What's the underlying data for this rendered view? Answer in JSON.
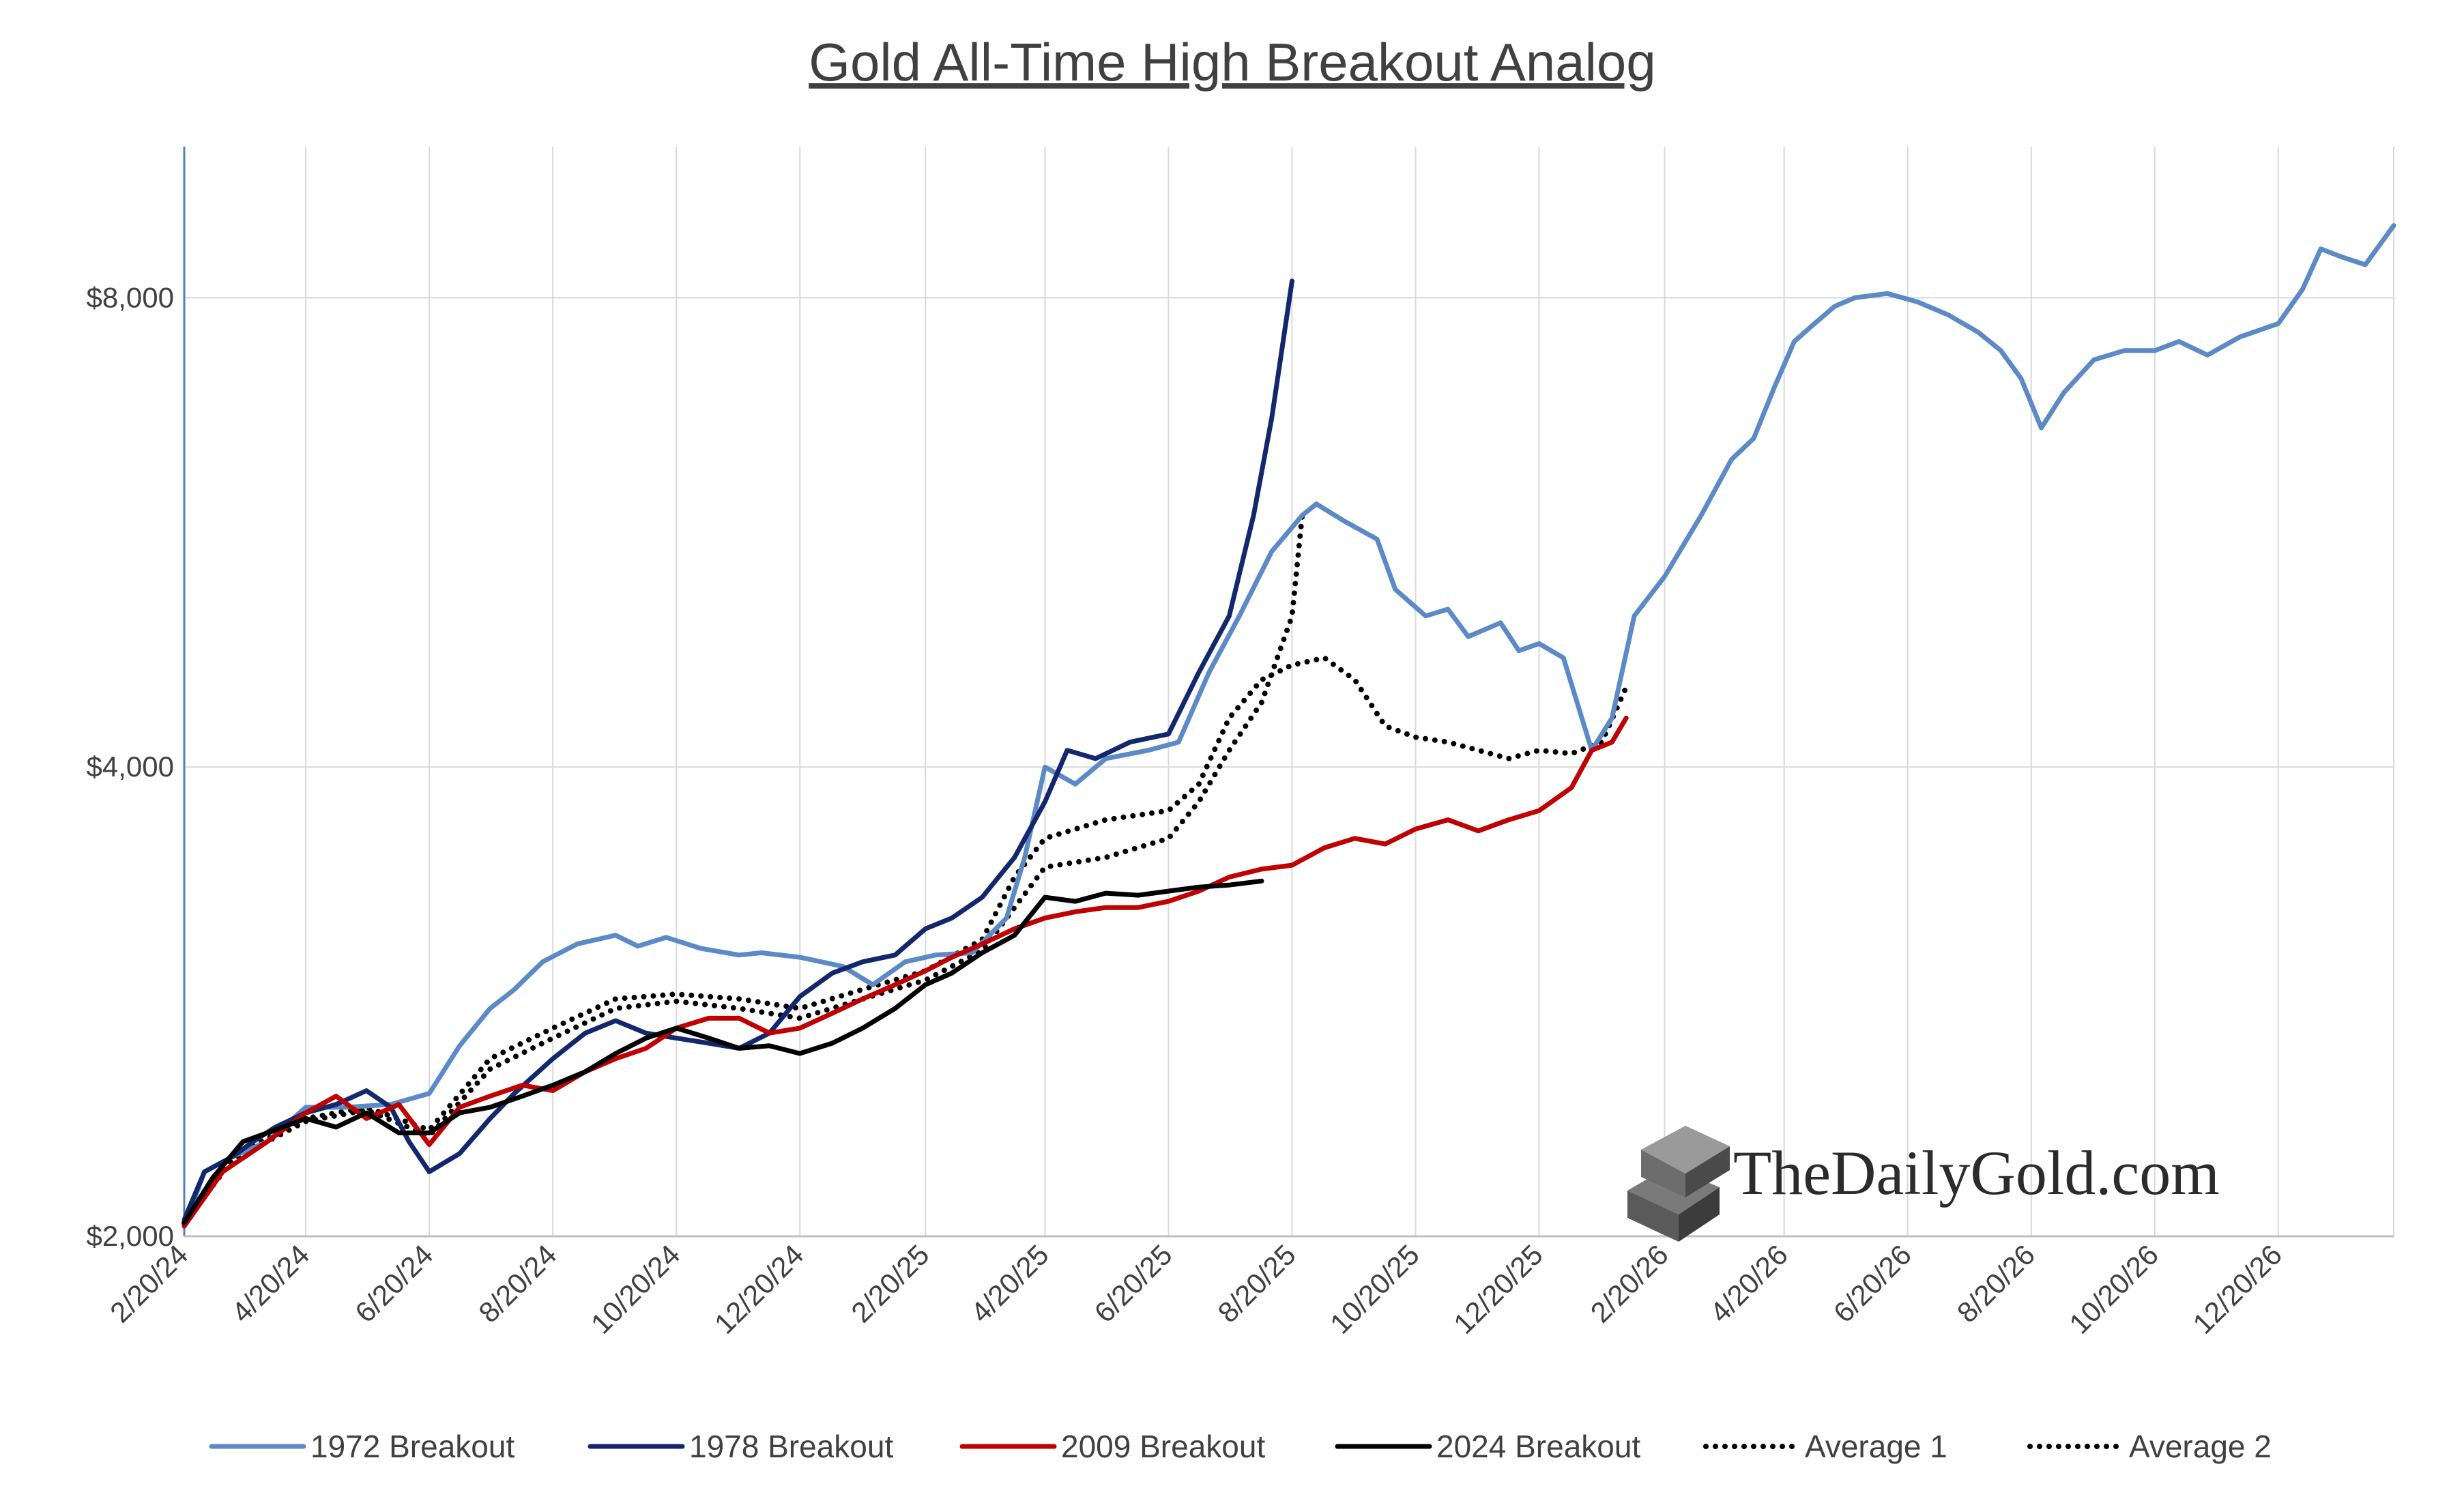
{
  "chart_data": {
    "type": "line",
    "title": "Gold All-Time High Breakout Analog",
    "xlabel": "",
    "ylabel": "",
    "y_scale": "log",
    "ylim": [
      2000,
      10000
    ],
    "y_ticks": [
      {
        "value": 2000,
        "label": "$2,000"
      },
      {
        "value": 4000,
        "label": "$4,000"
      },
      {
        "value": 8000,
        "label": "$8,000"
      }
    ],
    "x_ticks": [
      "2/20/24",
      "4/20/24",
      "6/20/24",
      "8/20/24",
      "10/20/24",
      "12/20/24",
      "2/20/25",
      "4/20/25",
      "6/20/25",
      "8/20/25",
      "10/20/25",
      "12/20/25",
      "2/20/26",
      "4/20/26",
      "6/20/26",
      "8/20/26",
      "10/20/26",
      "12/20/26"
    ],
    "x_range": [
      "2024-02-20",
      "2027-02-15"
    ],
    "grid": "vertical and horizontal",
    "legend_position": "bottom",
    "series": [
      {
        "name": "1972 Breakout",
        "color": "#5b8ac6",
        "style": "solid",
        "points": [
          [
            "2024-02-20",
            2030
          ],
          [
            "2024-03-01",
            2200
          ],
          [
            "2024-03-15",
            2250
          ],
          [
            "2024-04-01",
            2300
          ],
          [
            "2024-04-20",
            2420
          ],
          [
            "2024-05-10",
            2420
          ],
          [
            "2024-06-01",
            2430
          ],
          [
            "2024-06-20",
            2470
          ],
          [
            "2024-07-05",
            2650
          ],
          [
            "2024-07-20",
            2800
          ],
          [
            "2024-08-01",
            2880
          ],
          [
            "2024-08-15",
            3000
          ],
          [
            "2024-09-01",
            3080
          ],
          [
            "2024-09-20",
            3120
          ],
          [
            "2024-10-01",
            3070
          ],
          [
            "2024-10-15",
            3110
          ],
          [
            "2024-11-01",
            3060
          ],
          [
            "2024-11-20",
            3030
          ],
          [
            "2024-12-01",
            3040
          ],
          [
            "2024-12-20",
            3020
          ],
          [
            "2025-01-10",
            2980
          ],
          [
            "2025-01-25",
            2900
          ],
          [
            "2025-02-10",
            3000
          ],
          [
            "2025-02-25",
            3030
          ],
          [
            "2025-03-15",
            3040
          ],
          [
            "2025-04-01",
            3200
          ],
          [
            "2025-04-10",
            3500
          ],
          [
            "2025-04-20",
            4000
          ],
          [
            "2025-05-05",
            3900
          ],
          [
            "2025-05-20",
            4050
          ],
          [
            "2025-06-10",
            4100
          ],
          [
            "2025-06-25",
            4150
          ],
          [
            "2025-07-10",
            4600
          ],
          [
            "2025-07-25",
            5000
          ],
          [
            "2025-08-10",
            5500
          ],
          [
            "2025-08-25",
            5800
          ],
          [
            "2025-09-01",
            5900
          ],
          [
            "2025-09-15",
            5750
          ],
          [
            "2025-10-01",
            5600
          ],
          [
            "2025-10-10",
            5200
          ],
          [
            "2025-10-25",
            5000
          ],
          [
            "2025-11-05",
            5050
          ],
          [
            "2025-11-15",
            4850
          ],
          [
            "2025-12-01",
            4950
          ],
          [
            "2025-12-10",
            4750
          ],
          [
            "2025-12-20",
            4800
          ],
          [
            "2026-01-01",
            4700
          ],
          [
            "2026-01-15",
            4100
          ],
          [
            "2026-01-25",
            4300
          ],
          [
            "2026-02-05",
            5000
          ],
          [
            "2026-02-20",
            5300
          ],
          [
            "2026-03-10",
            5800
          ],
          [
            "2026-03-25",
            6300
          ],
          [
            "2026-04-05",
            6500
          ],
          [
            "2026-04-15",
            7000
          ],
          [
            "2026-04-25",
            7500
          ],
          [
            "2026-05-05",
            7700
          ],
          [
            "2026-05-15",
            7900
          ],
          [
            "2026-05-25",
            8000
          ],
          [
            "2026-06-10",
            8050
          ],
          [
            "2026-06-25",
            7950
          ],
          [
            "2026-07-10",
            7800
          ],
          [
            "2026-07-25",
            7600
          ],
          [
            "2026-08-05",
            7400
          ],
          [
            "2026-08-15",
            7100
          ],
          [
            "2026-08-25",
            6600
          ],
          [
            "2026-09-05",
            6950
          ],
          [
            "2026-09-20",
            7300
          ],
          [
            "2026-10-05",
            7400
          ],
          [
            "2026-10-20",
            7400
          ],
          [
            "2026-11-01",
            7500
          ],
          [
            "2026-11-15",
            7350
          ],
          [
            "2026-12-01",
            7550
          ],
          [
            "2026-12-20",
            7700
          ],
          [
            "2027-01-01",
            8100
          ],
          [
            "2027-01-10",
            8600
          ],
          [
            "2027-01-20",
            8500
          ],
          [
            "2027-02-01",
            8400
          ],
          [
            "2027-02-15",
            8900
          ]
        ]
      },
      {
        "name": "1978 Breakout",
        "color": "#13286c",
        "style": "solid",
        "points": [
          [
            "2024-02-20",
            2050
          ],
          [
            "2024-03-01",
            2200
          ],
          [
            "2024-03-15",
            2250
          ],
          [
            "2024-03-25",
            2300
          ],
          [
            "2024-04-05",
            2350
          ],
          [
            "2024-04-20",
            2400
          ],
          [
            "2024-05-05",
            2430
          ],
          [
            "2024-05-20",
            2480
          ],
          [
            "2024-06-01",
            2420
          ],
          [
            "2024-06-10",
            2300
          ],
          [
            "2024-06-20",
            2200
          ],
          [
            "2024-07-05",
            2260
          ],
          [
            "2024-07-20",
            2380
          ],
          [
            "2024-08-01",
            2470
          ],
          [
            "2024-08-20",
            2600
          ],
          [
            "2024-09-05",
            2700
          ],
          [
            "2024-09-20",
            2750
          ],
          [
            "2024-10-05",
            2700
          ],
          [
            "2024-10-20",
            2680
          ],
          [
            "2024-11-05",
            2660
          ],
          [
            "2024-11-20",
            2640
          ],
          [
            "2024-12-05",
            2700
          ],
          [
            "2024-12-20",
            2850
          ],
          [
            "2025-01-05",
            2950
          ],
          [
            "2025-01-20",
            3000
          ],
          [
            "2025-02-05",
            3030
          ],
          [
            "2025-02-20",
            3150
          ],
          [
            "2025-03-05",
            3200
          ],
          [
            "2025-03-20",
            3300
          ],
          [
            "2025-04-05",
            3500
          ],
          [
            "2025-04-20",
            3800
          ],
          [
            "2025-05-01",
            4100
          ],
          [
            "2025-05-15",
            4050
          ],
          [
            "2025-06-01",
            4150
          ],
          [
            "2025-06-20",
            4200
          ],
          [
            "2025-07-05",
            4600
          ],
          [
            "2025-07-20",
            5000
          ],
          [
            "2025-08-01",
            5800
          ],
          [
            "2025-08-10",
            6700
          ],
          [
            "2025-08-20",
            8200
          ]
        ]
      },
      {
        "name": "2009 Breakout",
        "color": "#c00000",
        "style": "solid",
        "points": [
          [
            "2024-02-20",
            2030
          ],
          [
            "2024-03-10",
            2200
          ],
          [
            "2024-04-01",
            2300
          ],
          [
            "2024-04-20",
            2400
          ],
          [
            "2024-05-05",
            2460
          ],
          [
            "2024-05-20",
            2380
          ],
          [
            "2024-06-05",
            2430
          ],
          [
            "2024-06-20",
            2290
          ],
          [
            "2024-07-05",
            2420
          ],
          [
            "2024-07-20",
            2460
          ],
          [
            "2024-08-05",
            2500
          ],
          [
            "2024-08-20",
            2480
          ],
          [
            "2024-09-05",
            2550
          ],
          [
            "2024-09-20",
            2600
          ],
          [
            "2024-10-05",
            2640
          ],
          [
            "2024-10-20",
            2720
          ],
          [
            "2024-11-05",
            2760
          ],
          [
            "2024-11-20",
            2760
          ],
          [
            "2024-12-05",
            2700
          ],
          [
            "2024-12-20",
            2720
          ],
          [
            "2025-01-05",
            2780
          ],
          [
            "2025-01-20",
            2840
          ],
          [
            "2025-02-05",
            2900
          ],
          [
            "2025-02-20",
            2960
          ],
          [
            "2025-03-05",
            3020
          ],
          [
            "2025-03-20",
            3080
          ],
          [
            "2025-04-05",
            3150
          ],
          [
            "2025-04-20",
            3200
          ],
          [
            "2025-05-05",
            3230
          ],
          [
            "2025-05-20",
            3250
          ],
          [
            "2025-06-05",
            3250
          ],
          [
            "2025-06-20",
            3280
          ],
          [
            "2025-07-05",
            3330
          ],
          [
            "2025-07-20",
            3400
          ],
          [
            "2025-08-05",
            3440
          ],
          [
            "2025-08-20",
            3460
          ],
          [
            "2025-09-05",
            3550
          ],
          [
            "2025-09-20",
            3600
          ],
          [
            "2025-10-05",
            3570
          ],
          [
            "2025-10-20",
            3650
          ],
          [
            "2025-11-05",
            3700
          ],
          [
            "2025-11-20",
            3640
          ],
          [
            "2025-12-05",
            3700
          ],
          [
            "2025-12-20",
            3750
          ],
          [
            "2026-01-05",
            3880
          ],
          [
            "2026-01-15",
            4100
          ],
          [
            "2026-01-25",
            4150
          ],
          [
            "2026-02-01",
            4300
          ]
        ]
      },
      {
        "name": "2024 Breakout",
        "color": "#000000",
        "style": "solid",
        "points": [
          [
            "2024-02-20",
            2040
          ],
          [
            "2024-03-05",
            2180
          ],
          [
            "2024-03-20",
            2300
          ],
          [
            "2024-04-05",
            2340
          ],
          [
            "2024-04-20",
            2380
          ],
          [
            "2024-05-05",
            2350
          ],
          [
            "2024-05-20",
            2400
          ],
          [
            "2024-06-05",
            2330
          ],
          [
            "2024-06-20",
            2330
          ],
          [
            "2024-07-05",
            2400
          ],
          [
            "2024-07-20",
            2420
          ],
          [
            "2024-08-05",
            2460
          ],
          [
            "2024-08-20",
            2500
          ],
          [
            "2024-09-05",
            2550
          ],
          [
            "2024-09-20",
            2620
          ],
          [
            "2024-10-05",
            2680
          ],
          [
            "2024-10-20",
            2720
          ],
          [
            "2024-11-05",
            2680
          ],
          [
            "2024-11-20",
            2640
          ],
          [
            "2024-12-05",
            2650
          ],
          [
            "2024-12-20",
            2620
          ],
          [
            "2025-01-05",
            2660
          ],
          [
            "2025-01-20",
            2720
          ],
          [
            "2025-02-05",
            2800
          ],
          [
            "2025-02-20",
            2900
          ],
          [
            "2025-03-05",
            2950
          ],
          [
            "2025-03-20",
            3040
          ],
          [
            "2025-04-05",
            3120
          ],
          [
            "2025-04-20",
            3300
          ],
          [
            "2025-05-05",
            3280
          ],
          [
            "2025-05-20",
            3320
          ],
          [
            "2025-06-05",
            3310
          ],
          [
            "2025-06-20",
            3330
          ],
          [
            "2025-07-05",
            3350
          ],
          [
            "2025-07-20",
            3360
          ],
          [
            "2025-08-05",
            3380
          ]
        ]
      },
      {
        "name": "Average 1",
        "color": "#000000",
        "style": "dotted",
        "points": [
          [
            "2024-02-20",
            2040
          ],
          [
            "2024-03-15",
            2250
          ],
          [
            "2024-04-20",
            2380
          ],
          [
            "2024-05-20",
            2420
          ],
          [
            "2024-06-20",
            2340
          ],
          [
            "2024-07-20",
            2600
          ],
          [
            "2024-08-20",
            2720
          ],
          [
            "2024-09-20",
            2840
          ],
          [
            "2024-10-20",
            2860
          ],
          [
            "2024-11-20",
            2840
          ],
          [
            "2024-12-20",
            2800
          ],
          [
            "2025-01-20",
            2880
          ],
          [
            "2025-02-20",
            2960
          ],
          [
            "2025-03-20",
            3100
          ],
          [
            "2025-04-05",
            3400
          ],
          [
            "2025-04-20",
            3600
          ],
          [
            "2025-05-20",
            3700
          ],
          [
            "2025-06-20",
            3750
          ],
          [
            "2025-07-05",
            3900
          ],
          [
            "2025-07-20",
            4300
          ],
          [
            "2025-08-05",
            4550
          ],
          [
            "2025-08-20",
            4650
          ],
          [
            "2025-09-05",
            4700
          ],
          [
            "2025-09-20",
            4550
          ],
          [
            "2025-10-05",
            4250
          ],
          [
            "2025-10-20",
            4180
          ],
          [
            "2025-11-05",
            4150
          ],
          [
            "2025-11-20",
            4100
          ],
          [
            "2025-12-05",
            4050
          ],
          [
            "2025-12-20",
            4100
          ],
          [
            "2026-01-05",
            4080
          ],
          [
            "2026-01-20",
            4150
          ],
          [
            "2026-02-01",
            4500
          ]
        ]
      },
      {
        "name": "Average 2",
        "color": "#000000",
        "style": "dotted",
        "points": [
          [
            "2024-02-20",
            2040
          ],
          [
            "2024-03-15",
            2240
          ],
          [
            "2024-04-20",
            2370
          ],
          [
            "2024-05-20",
            2410
          ],
          [
            "2024-06-20",
            2320
          ],
          [
            "2024-07-20",
            2560
          ],
          [
            "2024-08-20",
            2680
          ],
          [
            "2024-09-20",
            2800
          ],
          [
            "2024-10-20",
            2830
          ],
          [
            "2024-11-20",
            2800
          ],
          [
            "2024-12-20",
            2760
          ],
          [
            "2025-01-20",
            2840
          ],
          [
            "2025-02-20",
            2920
          ],
          [
            "2025-03-20",
            3050
          ],
          [
            "2025-04-05",
            3250
          ],
          [
            "2025-04-20",
            3450
          ],
          [
            "2025-05-20",
            3500
          ],
          [
            "2025-06-20",
            3600
          ],
          [
            "2025-07-05",
            3800
          ],
          [
            "2025-07-20",
            4100
          ],
          [
            "2025-08-05",
            4400
          ],
          [
            "2025-08-20",
            5000
          ],
          [
            "2025-08-25",
            5800
          ]
        ]
      }
    ]
  },
  "watermark": {
    "text": "TheDailyGold.com",
    "icon": "gold-bars-icon"
  }
}
